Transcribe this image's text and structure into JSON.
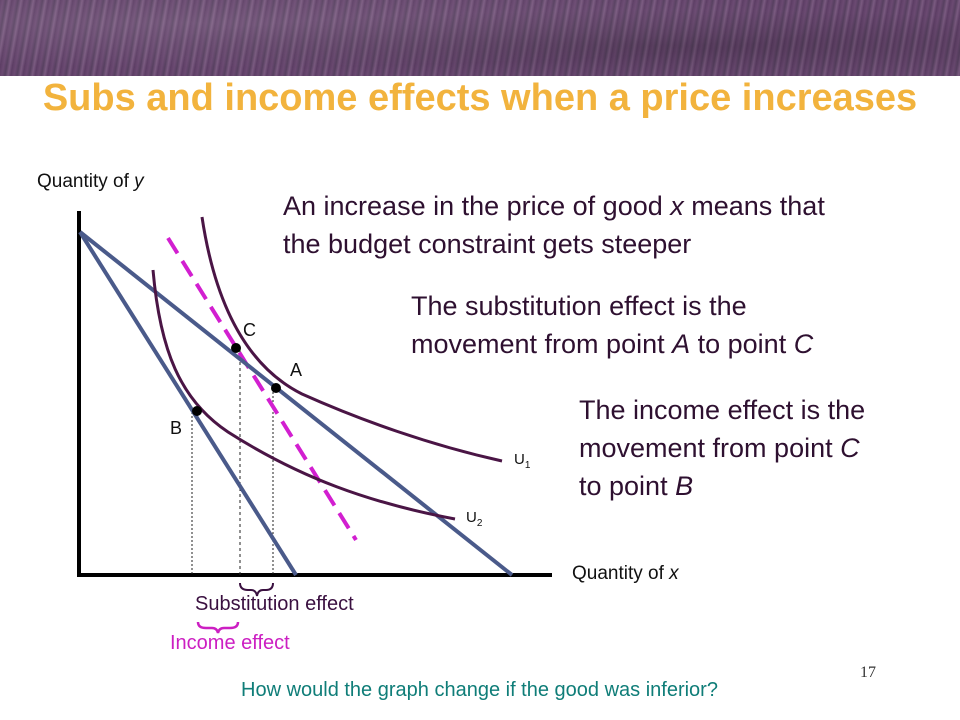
{
  "title": "Subs and income effects when a price increases",
  "y_axis_label": "Quantity of ",
  "y_axis_var": "y",
  "x_axis_label": "Quantity of ",
  "x_axis_var": "x",
  "text1": {
    "line1_a": "An increase in the price of good ",
    "line1_var": "x",
    "line1_b": " means that",
    "line2": "the budget constraint gets steeper"
  },
  "text2": {
    "line1": "The substitution effect is the",
    "line2_a": "movement from point ",
    "line2_var1": "A",
    "line2_b": " to point ",
    "line2_var2": "C"
  },
  "text3": {
    "line1": "The income effect is the",
    "line2_a": "movement from point ",
    "line2_var": "C",
    "line3_a": "to point ",
    "line3_var": "B"
  },
  "points": {
    "a": "A",
    "b": "B",
    "c": "C"
  },
  "curves": {
    "u1_base": "U",
    "u1_sub": "1",
    "u2_base": "U",
    "u2_sub": "2"
  },
  "substitution_effect_label": "Substitution effect",
  "income_effect_label": "Income effect",
  "question": "How would the graph change if the good was inferior?",
  "page_number": "17",
  "colors": {
    "title": "#f2b33d",
    "budget_line": "#4a5a8a",
    "indifference_curve": "#4a1545",
    "compensated_line": "#d21fd0",
    "income_effect": "#cc1fc2",
    "question": "#0f7d78"
  }
}
